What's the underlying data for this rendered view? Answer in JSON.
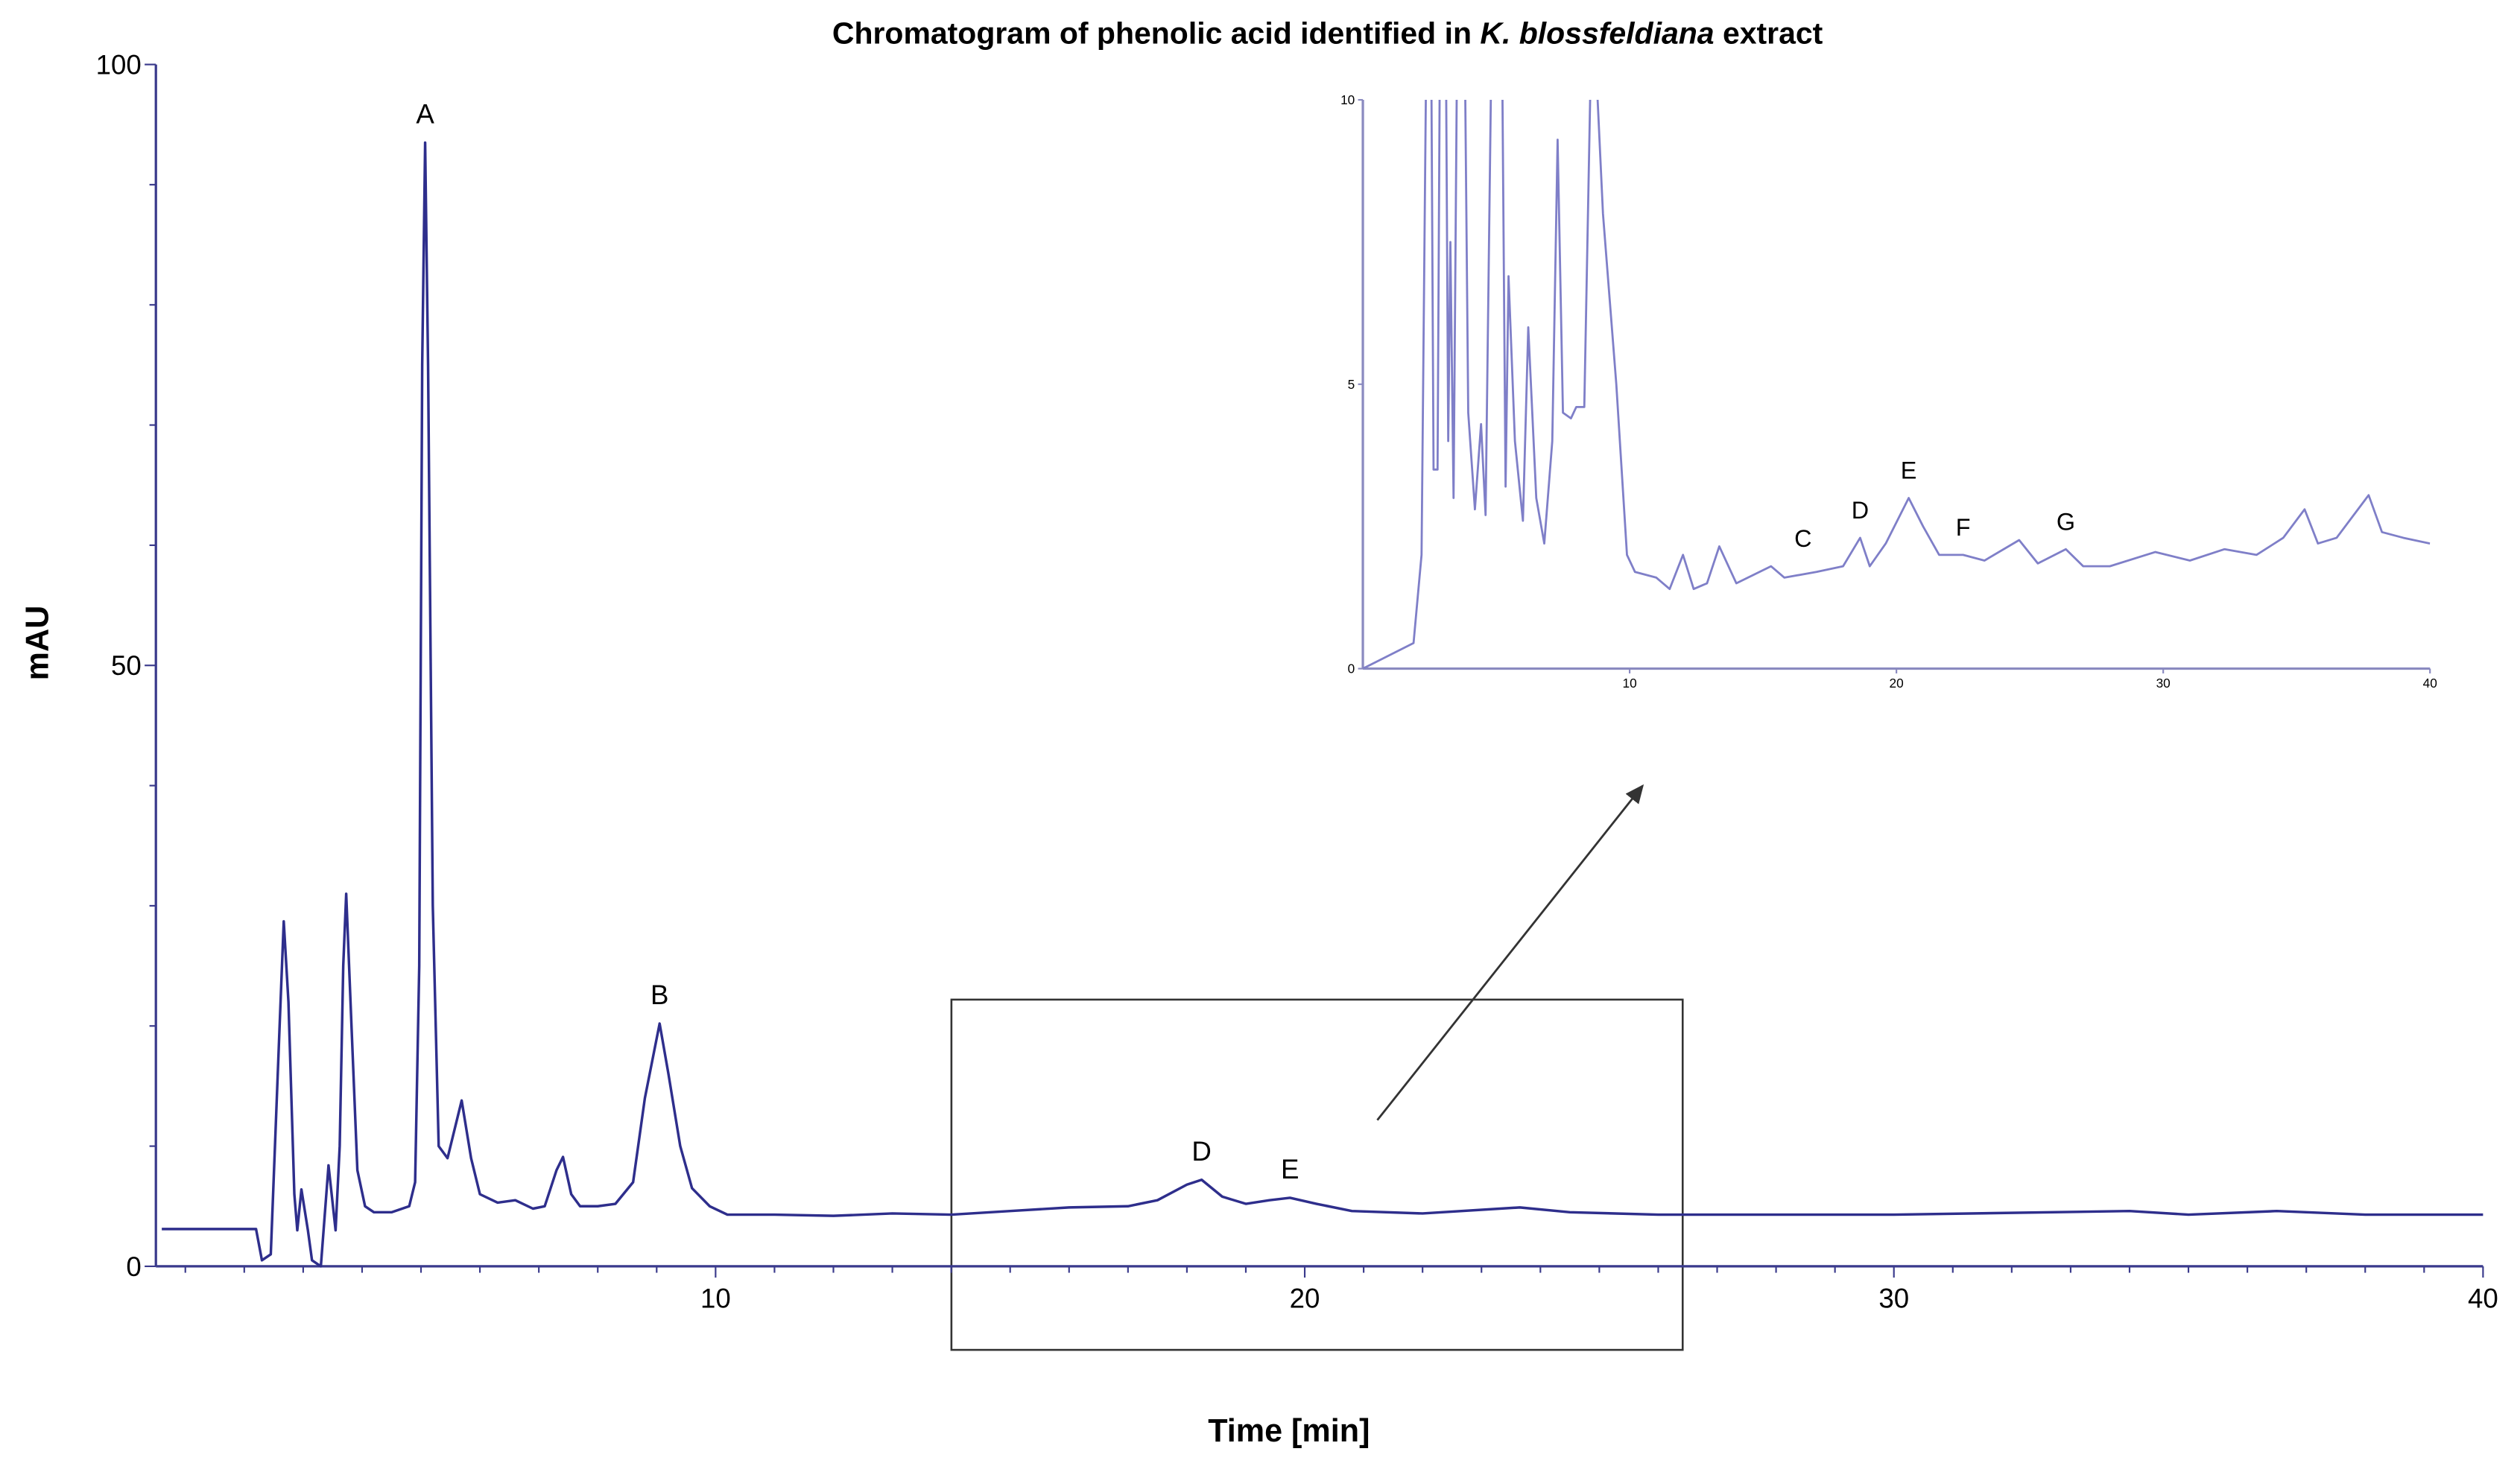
{
  "chart_data": [
    {
      "type": "line",
      "title_parts": [
        "Chromatogram of phenolic acid identified in",
        "K. blossfeldiana",
        "extract"
      ],
      "x_label": "Time [min]",
      "y_label": "mAU",
      "xlim": [
        0.5,
        40
      ],
      "xticks": [
        10,
        20,
        30,
        40
      ],
      "ylim": [
        0,
        100
      ],
      "yticks": [
        0,
        50,
        100
      ],
      "yminorticks": [
        10,
        20,
        30,
        40,
        60,
        70,
        80,
        90
      ],
      "xminorticks": [
        1,
        2,
        3,
        4,
        5,
        6,
        7,
        8,
        9,
        11,
        12,
        13,
        14,
        15,
        16,
        17,
        18,
        19,
        21,
        22,
        23,
        24,
        25,
        26,
        27,
        28,
        29,
        31,
        32,
        33,
        34,
        35,
        36,
        37,
        38,
        39
      ],
      "color": "#2e2e8c",
      "x": [
        0.6,
        2.2,
        2.3,
        2.45,
        2.6,
        2.67,
        2.75,
        2.85,
        2.9,
        2.97,
        3.08,
        3.15,
        3.3,
        3.43,
        3.55,
        3.62,
        3.68,
        3.73,
        3.82,
        3.92,
        4.05,
        4.2,
        4.5,
        4.8,
        4.9,
        4.97,
        5.02,
        5.07,
        5.12,
        5.2,
        5.3,
        5.45,
        5.69,
        5.85,
        6.0,
        6.3,
        6.6,
        6.9,
        7.1,
        7.3,
        7.41,
        7.55,
        7.7,
        8.0,
        8.3,
        8.6,
        8.8,
        9.05,
        9.2,
        9.4,
        9.6,
        9.9,
        10.2,
        11,
        12,
        13,
        14,
        15,
        16,
        17,
        17.5,
        18.0,
        18.25,
        18.6,
        19.0,
        19.4,
        19.75,
        20.2,
        20.8,
        22,
        23.65,
        24.5,
        26,
        30,
        34,
        35,
        36.5,
        38,
        40
      ],
      "y": [
        3.1,
        3.1,
        0.5,
        1,
        20,
        28.7,
        22,
        6,
        3,
        6.4,
        3,
        0.5,
        0,
        8.4,
        3,
        10,
        25,
        31,
        20,
        8,
        5,
        4.5,
        4.5,
        5,
        7,
        25,
        75,
        93.5,
        75,
        30,
        10,
        9,
        13.8,
        9,
        6,
        5.3,
        5.5,
        4.8,
        5,
        8,
        9.1,
        6,
        5,
        5,
        5.2,
        7,
        14,
        20.2,
        16,
        10,
        6.5,
        5,
        4.3,
        4.3,
        4.2,
        4.4,
        4.3,
        4.6,
        4.9,
        5,
        5.5,
        6.8,
        7.2,
        5.8,
        5.2,
        5.5,
        5.7,
        5.2,
        4.6,
        4.4,
        4.9,
        4.5,
        4.3,
        4.3,
        4.6,
        4.3,
        4.6,
        4.3,
        4.3
      ],
      "annotations": [
        {
          "text": "A",
          "x": 5.07,
          "y": 93.5
        },
        {
          "text": "B",
          "x": 9.05,
          "y": 20.2
        },
        {
          "text": "D",
          "x": 18.25,
          "y": 7.2
        },
        {
          "text": "E",
          "x": 19.75,
          "y": 5.7
        }
      ]
    },
    {
      "type": "line",
      "xlim": [
        0,
        40
      ],
      "xticks": [
        10,
        20,
        30,
        40
      ],
      "ylim": [
        0,
        10
      ],
      "yticks": [
        0,
        5,
        10
      ],
      "color": "#7f7fc8",
      "x": [
        0,
        1.9,
        2.2,
        2.4,
        2.55,
        2.65,
        2.8,
        2.9,
        3.1,
        3.2,
        3.28,
        3.4,
        3.55,
        3.8,
        3.95,
        4.2,
        4.43,
        4.6,
        4.85,
        5.2,
        5.35,
        5.46,
        5.7,
        6.0,
        6.2,
        6.5,
        6.8,
        7.1,
        7.3,
        7.5,
        7.8,
        8.0,
        8.3,
        8.6,
        9.0,
        9.5,
        9.9,
        10.2,
        11,
        11.5,
        12.0,
        12.4,
        12.9,
        13.36,
        14,
        15.3,
        15.8,
        17,
        18,
        18.64,
        19.0,
        19.6,
        20.46,
        21,
        21.6,
        22.5,
        23.3,
        24.6,
        25.3,
        26.35,
        27,
        28,
        29.7,
        31,
        32.3,
        33.5,
        34.5,
        35.3,
        35.8,
        36.5,
        37.7,
        38.2,
        39,
        40
      ],
      "y": [
        0,
        0.45,
        2,
        12,
        12,
        3.5,
        3.5,
        12,
        12,
        4,
        7.5,
        3,
        12,
        12,
        4.5,
        2.8,
        4.3,
        2.7,
        12,
        12,
        3.2,
        6.9,
        4,
        2.6,
        6,
        3,
        2.2,
        4,
        9.3,
        4.5,
        4.4,
        4.6,
        4.6,
        12,
        8,
        5,
        2,
        1.7,
        1.6,
        1.4,
        2.0,
        1.4,
        1.5,
        2.15,
        1.5,
        1.8,
        1.6,
        1.7,
        1.8,
        2.3,
        1.8,
        2.2,
        3.0,
        2.5,
        2.0,
        2.0,
        1.9,
        2.26,
        1.85,
        2.1,
        1.8,
        1.8,
        2.05,
        1.9,
        2.1,
        2.0,
        2.3,
        2.8,
        2.2,
        2.3,
        3.05,
        2.4,
        2.3,
        2.2
      ],
      "annotations": [
        {
          "text": "C",
          "x": 16.5,
          "y": 1.8
        },
        {
          "text": "D",
          "x": 18.64,
          "y": 2.3
        },
        {
          "text": "E",
          "x": 20.46,
          "y": 3.0
        },
        {
          "text": "F",
          "x": 22.5,
          "y": 2.0
        },
        {
          "text": "G",
          "x": 26.35,
          "y": 2.1
        }
      ]
    }
  ]
}
